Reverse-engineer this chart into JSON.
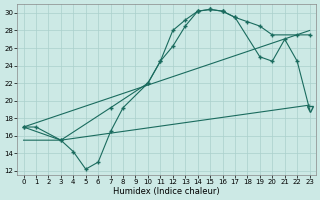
{
  "xlabel": "Humidex (Indice chaleur)",
  "background_color": "#cce9e5",
  "grid_color": "#aad0cc",
  "line_color": "#1a6b5e",
  "xlim": [
    -0.5,
    23.5
  ],
  "ylim": [
    11.5,
    31
  ],
  "yticks": [
    12,
    14,
    16,
    18,
    20,
    22,
    24,
    26,
    28,
    30
  ],
  "xticks": [
    0,
    1,
    2,
    3,
    4,
    5,
    6,
    7,
    8,
    9,
    10,
    11,
    12,
    13,
    14,
    15,
    16,
    17,
    18,
    19,
    20,
    21,
    22,
    23
  ],
  "line1_x": [
    0,
    1,
    3,
    4,
    5,
    6,
    7,
    8,
    10,
    11,
    12,
    13,
    14,
    14,
    15,
    15,
    16,
    16,
    17,
    18,
    19,
    20,
    22,
    23
  ],
  "line1_y": [
    17.0,
    17.0,
    15.5,
    14.2,
    12.2,
    13.0,
    16.5,
    19.2,
    22.0,
    24.5,
    28.0,
    29.2,
    30.2,
    30.2,
    30.4,
    30.4,
    30.2,
    30.2,
    29.5,
    29.0,
    28.5,
    27.5,
    27.5,
    27.5
  ],
  "line2_x": [
    0,
    3,
    7,
    10,
    11,
    12,
    13,
    14,
    15,
    16,
    17,
    19,
    20,
    21,
    22,
    23
  ],
  "line2_y": [
    17.0,
    15.5,
    19.2,
    22.0,
    24.5,
    26.2,
    28.5,
    30.2,
    30.4,
    30.2,
    29.5,
    25.0,
    24.5,
    27.0,
    24.5,
    19.0
  ],
  "line3_x": [
    0,
    23
  ],
  "line3_y": [
    17.0,
    28.0
  ],
  "line4_x": [
    0,
    3,
    23
  ],
  "line4_y": [
    15.5,
    15.5,
    19.5
  ]
}
